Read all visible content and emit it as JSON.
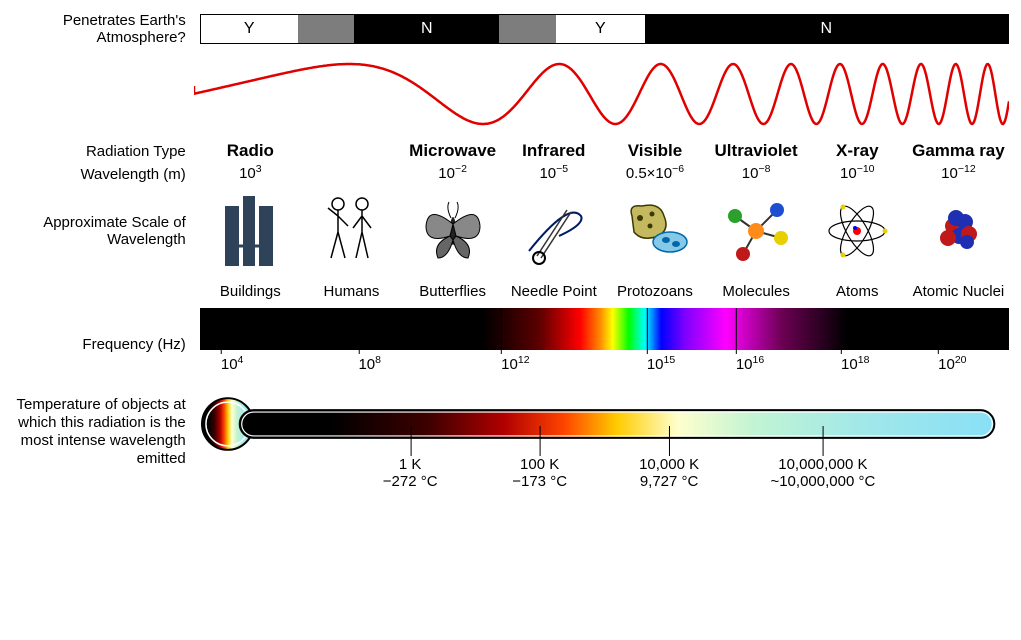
{
  "penetrate": {
    "label": "Penetrates Earth's Atmosphere?",
    "segments": [
      {
        "w": 12,
        "cls": "white",
        "txt": "Y"
      },
      {
        "w": 7,
        "cls": "gray",
        "txt": ""
      },
      {
        "w": 18,
        "cls": "black",
        "txt": "N"
      },
      {
        "w": 7,
        "cls": "gray",
        "txt": ""
      },
      {
        "w": 11,
        "cls": "white",
        "txt": "Y"
      },
      {
        "w": 45,
        "cls": "black",
        "txt": "N"
      }
    ]
  },
  "wave_color": "#e00000",
  "radiation": {
    "type_label": "Radiation Type",
    "wavelength_label": "Wavelength (m)",
    "scale_label": "Approximate Scale of Wavelength",
    "types": [
      {
        "name": "Radio",
        "wl_base": "10",
        "wl_exp": "3",
        "scale": "Buildings",
        "icon": "buildings"
      },
      {
        "name": "",
        "wl_base": "",
        "wl_exp": null,
        "scale": "Humans",
        "icon": "humans"
      },
      {
        "name": "Microwave",
        "wl_base": "10",
        "wl_exp": "−2",
        "scale": "Butterflies",
        "icon": "butterfly"
      },
      {
        "name": "Infrared",
        "wl_base": "10",
        "wl_exp": "−5",
        "scale": "Needle Point",
        "icon": "needle"
      },
      {
        "name": "Visible",
        "wl_base": "0.5×10",
        "wl_exp": "−6",
        "scale": "Protozoans",
        "icon": "protozoan"
      },
      {
        "name": "Ultraviolet",
        "wl_base": "10",
        "wl_exp": "−8",
        "scale": "Molecules",
        "icon": "molecule"
      },
      {
        "name": "X-ray",
        "wl_base": "10",
        "wl_exp": "−10",
        "scale": "Atoms",
        "icon": "atom"
      },
      {
        "name": "Gamma ray",
        "wl_base": "10",
        "wl_exp": "−12",
        "scale": "Atomic Nuclei",
        "icon": "nuclei"
      }
    ]
  },
  "frequency": {
    "label": "Frequency (Hz)",
    "ticks": [
      {
        "pos": 4,
        "val": "10",
        "exp": "4"
      },
      {
        "pos": 21,
        "val": "10",
        "exp": "8"
      },
      {
        "pos": 39,
        "val": "10",
        "exp": "12"
      },
      {
        "pos": 57,
        "val": "10",
        "exp": "15"
      },
      {
        "pos": 68,
        "val": "10",
        "exp": "16"
      },
      {
        "pos": 81,
        "val": "10",
        "exp": "18"
      },
      {
        "pos": 93,
        "val": "10",
        "exp": "20"
      }
    ]
  },
  "temperature": {
    "label": "Temperature of objects at which this radiation is the most intense wavelength emitted",
    "ticks": [
      {
        "pos": 26,
        "k": "1 K",
        "c": "−272 °C"
      },
      {
        "pos": 42,
        "k": "100 K",
        "c": "−173 °C"
      },
      {
        "pos": 58,
        "k": "10,000 K",
        "c": "9,727 °C"
      },
      {
        "pos": 77,
        "k": "10,000,000 K",
        "c": "~10,000,000 °C"
      }
    ]
  }
}
